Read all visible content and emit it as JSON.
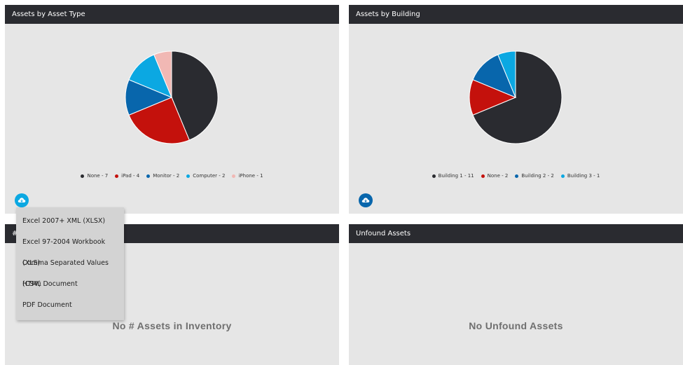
{
  "panels": {
    "asset_type": {
      "title": "Assets by Asset Type",
      "slices": [
        {
          "label": "None - 7",
          "value": 7,
          "color": "#2a2b30"
        },
        {
          "label": "iPad - 4",
          "value": 4,
          "color": "#c4110c"
        },
        {
          "label": "Monitor - 2",
          "value": 2,
          "color": "#0866ac"
        },
        {
          "label": "Computer - 2",
          "value": 2,
          "color": "#0ba8e2"
        },
        {
          "label": "iPhone - 1",
          "value": 1,
          "color": "#f1b8b4"
        }
      ]
    },
    "building": {
      "title": "Assets by Building",
      "slices": [
        {
          "label": "Building 1 - 11",
          "value": 11,
          "color": "#2a2b30"
        },
        {
          "label": "None - 2",
          "value": 2,
          "color": "#c4110c"
        },
        {
          "label": "Building 2 - 2",
          "value": 2,
          "color": "#0866ac"
        },
        {
          "label": "Building 3 - 1",
          "value": 1,
          "color": "#0ba8e2"
        }
      ]
    },
    "inventory": {
      "title_partial": "#",
      "empty_message": "No # Assets in Inventory"
    },
    "unfound": {
      "title": "Unfound Assets",
      "empty_message": "No Unfound Assets"
    }
  },
  "export_menu": {
    "items": [
      "Excel 2007+ XML (XLSX)",
      "Excel 97-2004 Workbook (XLS)",
      "Comma Separated Values (CSV)",
      "HTML Document",
      "PDF Document"
    ]
  },
  "icons": {
    "export_button_icon": "cloud-download-icon",
    "export_button_color_active": "#0ba8e2",
    "export_button_color": "#0866ac"
  }
}
